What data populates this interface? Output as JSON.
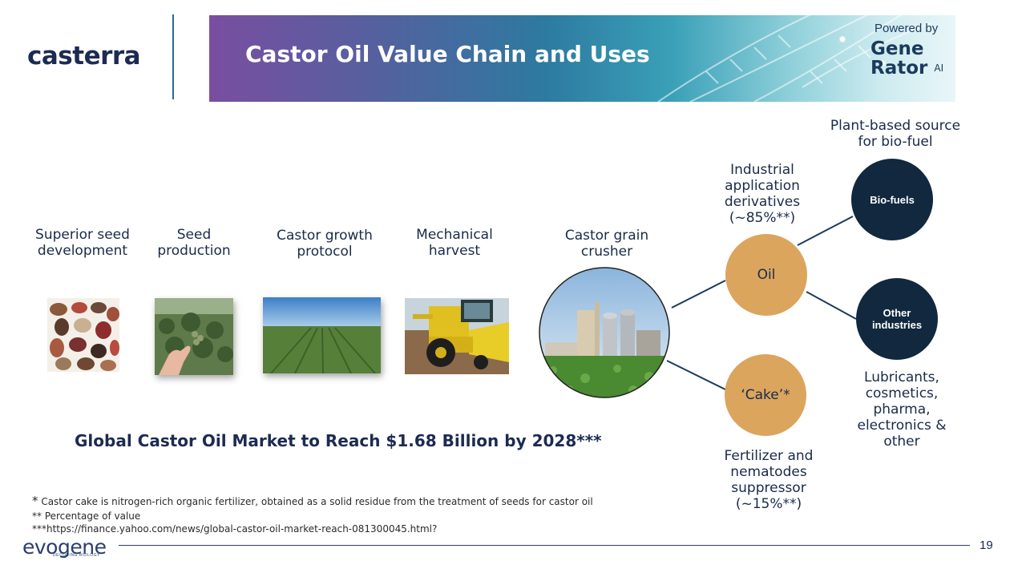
{
  "brand": {
    "logo_text": "casterra",
    "colors": {
      "navy": "#1c2b52",
      "gold": "#dba55e",
      "dark_circle": "#11283f"
    }
  },
  "header": {
    "title": "Castor Oil Value Chain and Uses",
    "powered_by": "Powered by",
    "generator_line1": "Gene",
    "generator_line2": "Rator",
    "generator_ai": "AI"
  },
  "steps": [
    {
      "label": "Superior seed\ndevelopment"
    },
    {
      "label": "Seed\nproduction"
    },
    {
      "label": "Castor growth\nprotocol"
    },
    {
      "label": "Mechanical\nharvest"
    },
    {
      "label": "Castor grain\ncrusher"
    }
  ],
  "outputs": {
    "oil": {
      "label": "Oil",
      "description": "Industrial\napplication\nderivatives\n(~85%**)"
    },
    "cake": {
      "label": "‘Cake’*",
      "description": "Fertilizer and\nnematodes\nsuppressor\n(~15%**)"
    },
    "biofuels": {
      "label": "Bio-fuels",
      "description": "Plant-based source\nfor bio-fuel"
    },
    "other": {
      "label": "Other\nindustries",
      "description": "Lubricants,\ncosmetics,\npharma,\nelectronics &\nother"
    }
  },
  "market_statement": "Global Castor Oil Market to Reach $1.68 Billion by 2028***",
  "footnotes": {
    "note1_mark": "*",
    "note1": " Castor cake is nitrogen-rich organic fertilizer, obtained as a solid residue from the treatment of seeds for castor oil",
    "note2": "** Percentage of value",
    "note3": "***https://finance.yahoo.com/news/global-castor-oil-market-reach-081300045.html?"
  },
  "footer": {
    "company": "evogene",
    "tagline": "DECODING BIOLOGY",
    "page_number": "19"
  }
}
